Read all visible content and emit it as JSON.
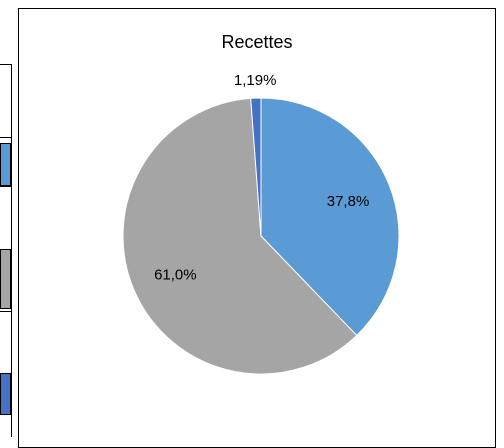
{
  "chart_data": {
    "type": "pie",
    "title": "Recettes",
    "slices": [
      {
        "label": "37,8%",
        "value": 37.8,
        "color": "#5b9bd5"
      },
      {
        "label": "61,0%",
        "value": 61.0,
        "color": "#a5a5a5"
      },
      {
        "label": "1,19%",
        "value": 1.19,
        "color": "#4472c4"
      }
    ],
    "start_angle_deg": 0,
    "direction": "clockwise"
  },
  "legend_swatches": [
    "#5b9bd5",
    "#a5a5a5",
    "#4472c4"
  ]
}
